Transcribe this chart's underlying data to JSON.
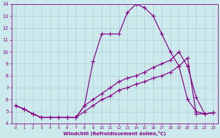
{
  "xlabel": "Windchill (Refroidissement éolien,°C)",
  "bg_color": "#cce9ec",
  "line_color": "#880088",
  "grid_color": "#aacdd4",
  "axis_color": "#880088",
  "tick_color": "#880088",
  "xlim": [
    -0.5,
    23.5
  ],
  "ylim": [
    4,
    14
  ],
  "xticks": [
    0,
    1,
    2,
    3,
    4,
    5,
    6,
    7,
    8,
    9,
    10,
    11,
    12,
    13,
    14,
    15,
    16,
    17,
    18,
    19,
    20,
    21,
    22,
    23
  ],
  "yticks": [
    4,
    5,
    6,
    7,
    8,
    9,
    10,
    11,
    12,
    13,
    14
  ],
  "line1_x": [
    0,
    1,
    2,
    3,
    4,
    5,
    6,
    7,
    8,
    9,
    10,
    11,
    12,
    13,
    14,
    15,
    16,
    17,
    18,
    19,
    20,
    21,
    22,
    23
  ],
  "line1_y": [
    5.5,
    5.2,
    4.8,
    4.5,
    4.5,
    4.5,
    4.5,
    4.5,
    5.5,
    9.2,
    11.5,
    11.5,
    11.5,
    13.3,
    14.0,
    13.7,
    13.0,
    11.5,
    10.0,
    8.8,
    6.0,
    5.0,
    4.8,
    4.9
  ],
  "line2_x": [
    0,
    1,
    2,
    3,
    4,
    5,
    6,
    7,
    8,
    9,
    10,
    11,
    12,
    13,
    14,
    15,
    16,
    17,
    18,
    19,
    20,
    21,
    22,
    23
  ],
  "line2_y": [
    5.5,
    5.2,
    4.8,
    4.5,
    4.5,
    4.5,
    4.5,
    4.5,
    5.5,
    6.0,
    6.5,
    7.0,
    7.5,
    7.8,
    8.0,
    8.3,
    8.7,
    9.0,
    9.3,
    10.0,
    8.8,
    6.2,
    4.8,
    4.9
  ],
  "line3_x": [
    0,
    1,
    2,
    3,
    4,
    5,
    6,
    7,
    8,
    9,
    10,
    11,
    12,
    13,
    14,
    15,
    16,
    17,
    18,
    19,
    20,
    21,
    22,
    23
  ],
  "line3_y": [
    5.5,
    5.2,
    4.8,
    4.5,
    4.5,
    4.5,
    4.5,
    4.5,
    5.0,
    5.5,
    6.0,
    6.3,
    6.8,
    7.0,
    7.3,
    7.5,
    7.8,
    8.0,
    8.3,
    8.8,
    9.5,
    4.8,
    4.8,
    4.9
  ],
  "marker_size": 4,
  "linewidth": 0.9
}
